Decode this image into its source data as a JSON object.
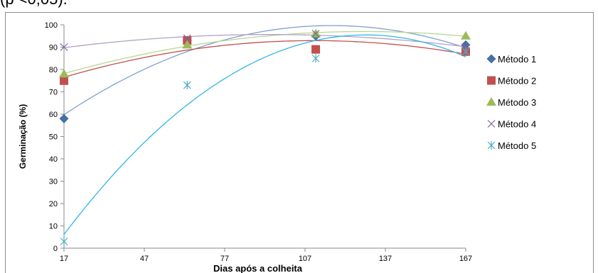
{
  "caption_fragment": "(p <0,05).",
  "chart_data": {
    "type": "scatter",
    "title": "",
    "xlabel": "Dias após a colheita",
    "ylabel": "Germinação (%)",
    "xlim": [
      17,
      167
    ],
    "ylim": [
      0,
      100
    ],
    "xticks": [
      "17",
      "47",
      "77",
      "107",
      "137",
      "167"
    ],
    "yticks": [
      "0",
      "10",
      "20",
      "30",
      "40",
      "50",
      "60",
      "70",
      "80",
      "90",
      "100"
    ],
    "grid": false,
    "legend_position": "right",
    "x": [
      17,
      63,
      111,
      167
    ],
    "series": [
      {
        "name": "Método 1",
        "marker": "diamond",
        "color": "#4472a8",
        "trend_color": "#7f9fd0",
        "values": [
          58,
          93,
          95,
          91
        ]
      },
      {
        "name": "Método 2",
        "marker": "square",
        "color": "#c0504d",
        "trend_color": "#c0504d",
        "values": [
          75,
          93,
          89,
          88
        ]
      },
      {
        "name": "Método 3",
        "marker": "triangle",
        "color": "#9bbb59",
        "trend_color": "#b6d88f",
        "values": [
          78,
          91,
          96,
          95
        ]
      },
      {
        "name": "Método 4",
        "marker": "x",
        "color": "#8064a2",
        "trend_color": "#b3a2c7",
        "values": [
          90,
          94,
          96,
          90
        ]
      },
      {
        "name": "Método 5",
        "marker": "star",
        "color": "#4bacc6",
        "trend_color": "#31b6e7",
        "values": [
          3,
          73,
          85,
          88
        ]
      }
    ]
  }
}
